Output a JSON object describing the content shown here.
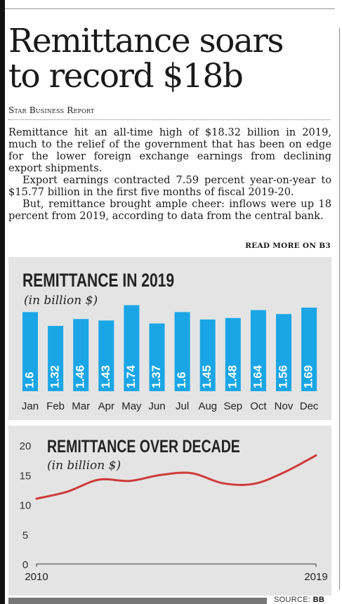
{
  "article": {
    "headline_line1": "Remittance soars",
    "headline_line2": "to record $18b",
    "byline": "Star Business Report",
    "paragraphs": [
      "Remittance hit an all-time high of $18.32 billion in 2019, much to the relief of the government that has been on edge for the lower foreign exchange earnings from declining export shipments.",
      "Export earnings contracted 7.59 percent year-on-year to $15.77 billion in the first five months of fiscal 2019-20.",
      "But, remittance brought ample cheer: inflows were up 18 percent from 2019, according to data from the central bank."
    ],
    "read_more": "READ MORE ON B3"
  },
  "source": {
    "label": "SOURCE:",
    "value": "BB"
  },
  "colors": {
    "bar": "#1aa6e6",
    "line": "#d03a3a",
    "panel": "#e4e4e4"
  },
  "chart_data": [
    {
      "type": "bar",
      "title": "REMITTANCE IN 2019",
      "subtitle": "(in billion $)",
      "categories": [
        "Jan",
        "Feb",
        "Mar",
        "Apr",
        "May",
        "Jun",
        "Jul",
        "Aug",
        "Sep",
        "Oct",
        "Nov",
        "Dec"
      ],
      "values": [
        1.6,
        1.32,
        1.46,
        1.43,
        1.74,
        1.37,
        1.6,
        1.45,
        1.48,
        1.64,
        1.56,
        1.69
      ],
      "value_labels": [
        "1.6",
        "1.32",
        "1.46",
        "1.43",
        "1.74",
        "1.37",
        "1.6",
        "1.45",
        "1.48",
        "1.64",
        "1.56",
        "1.69"
      ],
      "grid": false
    },
    {
      "type": "line",
      "title": "REMITTANCE OVER DECADE",
      "subtitle": "(in billion $)",
      "x": [
        2010,
        2011,
        2012,
        2013,
        2014,
        2015,
        2016,
        2017,
        2018,
        2019
      ],
      "y": [
        11.0,
        12.2,
        14.2,
        14.0,
        15.0,
        15.3,
        13.6,
        13.5,
        15.5,
        18.3
      ],
      "xticks": [
        "2010",
        "2019"
      ],
      "yticks": [
        "0",
        "5",
        "10",
        "15",
        "20"
      ],
      "ylim": [
        0,
        20
      ],
      "grid": false
    }
  ]
}
